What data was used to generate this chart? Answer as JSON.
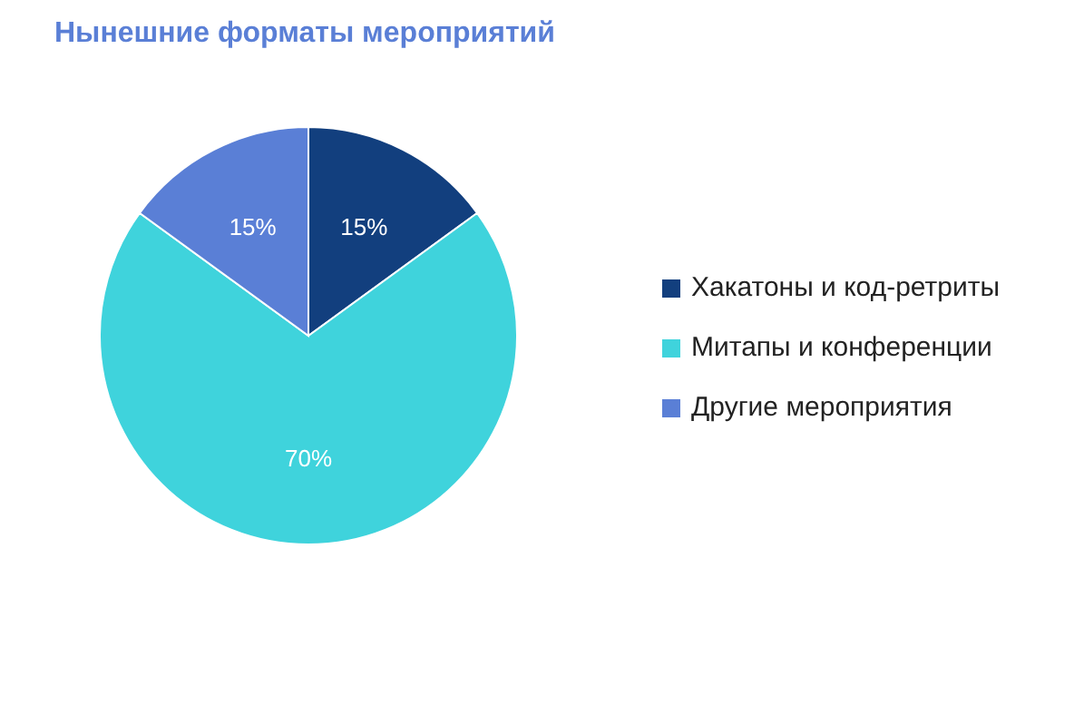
{
  "chart_data": {
    "type": "pie",
    "title": "Нынешние форматы мероприятий",
    "categories": [
      "Хакатоны и код-ретриты",
      "Митапы и конференции",
      "Другие мероприятия"
    ],
    "values": [
      15,
      70,
      15
    ],
    "colors": [
      "#123f7e",
      "#3fd3dc",
      "#5a7fd6"
    ],
    "value_labels": [
      "15%",
      "70%",
      "15%"
    ],
    "legend": "right"
  }
}
